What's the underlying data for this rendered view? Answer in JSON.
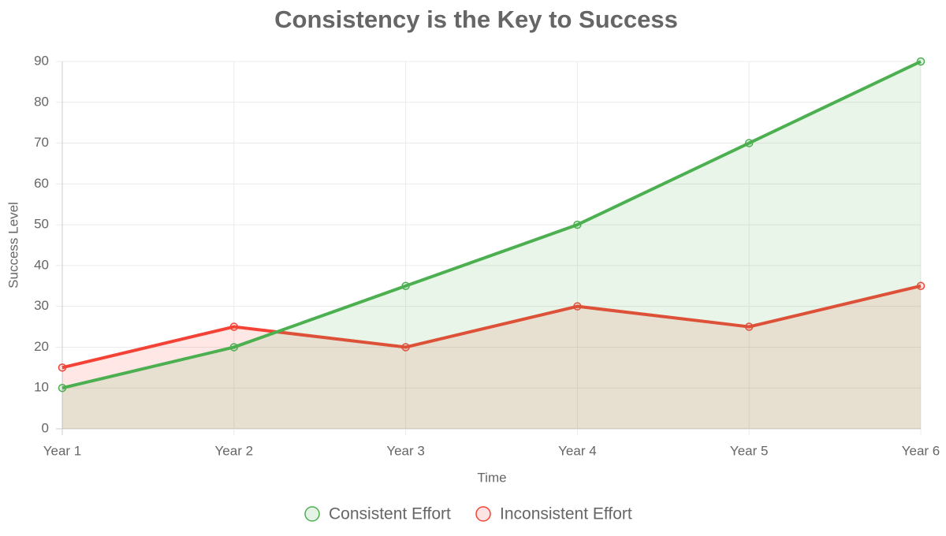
{
  "chart_data": {
    "type": "line",
    "title": "Consistency is the Key to Success",
    "xlabel": "Time",
    "ylabel": "Success Level",
    "categories": [
      "Year 1",
      "Year 2",
      "Year 3",
      "Year 4",
      "Year 5",
      "Year 6"
    ],
    "series": [
      {
        "name": "Consistent Effort",
        "color": "#4caf50",
        "values": [
          10,
          20,
          35,
          50,
          70,
          90
        ]
      },
      {
        "name": "Inconsistent Effort",
        "color": "#f44336",
        "values": [
          15,
          25,
          20,
          30,
          25,
          35
        ]
      }
    ],
    "ylim": [
      0,
      90
    ],
    "yticks": [
      0,
      10,
      20,
      30,
      40,
      50,
      60,
      70,
      80,
      90
    ],
    "grid": true,
    "fill": true,
    "legend": "bottom"
  }
}
